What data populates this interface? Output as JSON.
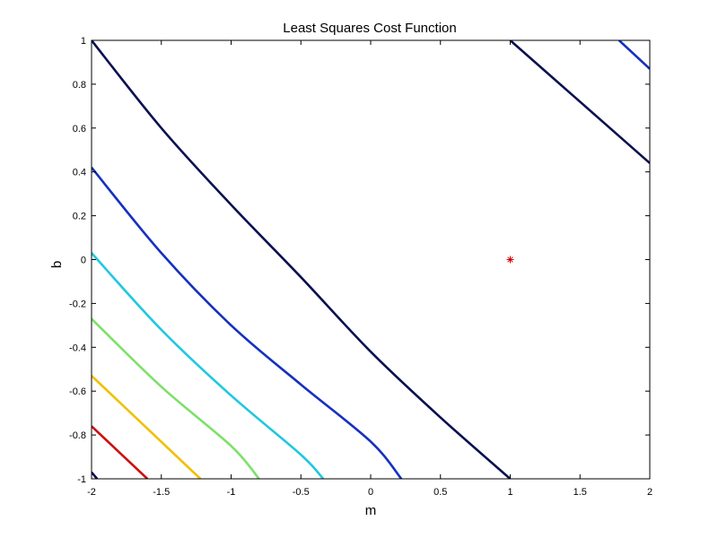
{
  "chart_data": {
    "type": "contour",
    "title": "Least Squares Cost Function",
    "xlabel": "m",
    "ylabel": "b",
    "xlim": [
      -2,
      2
    ],
    "ylim": [
      -1,
      1
    ],
    "x_ticks": [
      -2,
      -1.5,
      -1,
      -0.5,
      0,
      0.5,
      1,
      1.5,
      2
    ],
    "x_tick_labels": [
      "-2",
      "-1.5",
      "-1",
      "-0.5",
      "0",
      "0.5",
      "1",
      "1.5",
      "2"
    ],
    "y_ticks": [
      -1,
      -0.8,
      -0.6,
      -0.4,
      -0.2,
      0,
      0.2,
      0.4,
      0.6,
      0.8,
      1
    ],
    "y_tick_labels": [
      "-1",
      "-0.8",
      "-0.6",
      "-0.4",
      "-0.2",
      "0",
      "0.2",
      "0.4",
      "0.6",
      "0.8",
      "1"
    ],
    "grid": false,
    "series": [
      {
        "color": "#0a0a50",
        "points": [
          [
            -2,
            -0.97
          ],
          [
            -1.96,
            -1
          ]
        ]
      },
      {
        "color": "#cc1010",
        "points": [
          [
            -2,
            -0.76
          ],
          [
            -1.6,
            -1
          ]
        ]
      },
      {
        "color": "#f0c000",
        "points": [
          [
            -2,
            -0.53
          ],
          [
            -1.22,
            -1
          ]
        ]
      },
      {
        "color": "#7ee06a",
        "points": [
          [
            -2,
            -0.27
          ],
          [
            -1.5,
            -0.58
          ],
          [
            -1.0,
            -0.85
          ],
          [
            -0.8,
            -1
          ]
        ]
      },
      {
        "color": "#20c8e0",
        "points": [
          [
            -2,
            0.03
          ],
          [
            -1.5,
            -0.32
          ],
          [
            -1.0,
            -0.62
          ],
          [
            -0.5,
            -0.89
          ],
          [
            -0.34,
            -1
          ]
        ]
      },
      {
        "color": "#1530c0",
        "points": [
          [
            -2,
            0.42
          ],
          [
            -1.5,
            0.03
          ],
          [
            -1.0,
            -0.3
          ],
          [
            -0.5,
            -0.57
          ],
          [
            0,
            -0.83
          ],
          [
            0.22,
            -1
          ]
        ]
      },
      {
        "color": "#0a1050",
        "points": [
          [
            -2,
            1.0
          ],
          [
            -1.5,
            0.6
          ],
          [
            -1.0,
            0.25
          ],
          [
            -0.5,
            -0.08
          ],
          [
            0,
            -0.42
          ],
          [
            0.5,
            -0.72
          ],
          [
            1.0,
            -1.0
          ]
        ]
      },
      {
        "color": "#0a1050",
        "points": [
          [
            1.0,
            1.0
          ],
          [
            1.5,
            0.72
          ],
          [
            2.0,
            0.44
          ]
        ]
      },
      {
        "color": "#1530c0",
        "points": [
          [
            1.78,
            1.0
          ],
          [
            2.0,
            0.87
          ]
        ]
      }
    ],
    "markers": [
      {
        "x": 1,
        "y": 0,
        "symbol": "*",
        "color": "#cc0000"
      }
    ]
  }
}
